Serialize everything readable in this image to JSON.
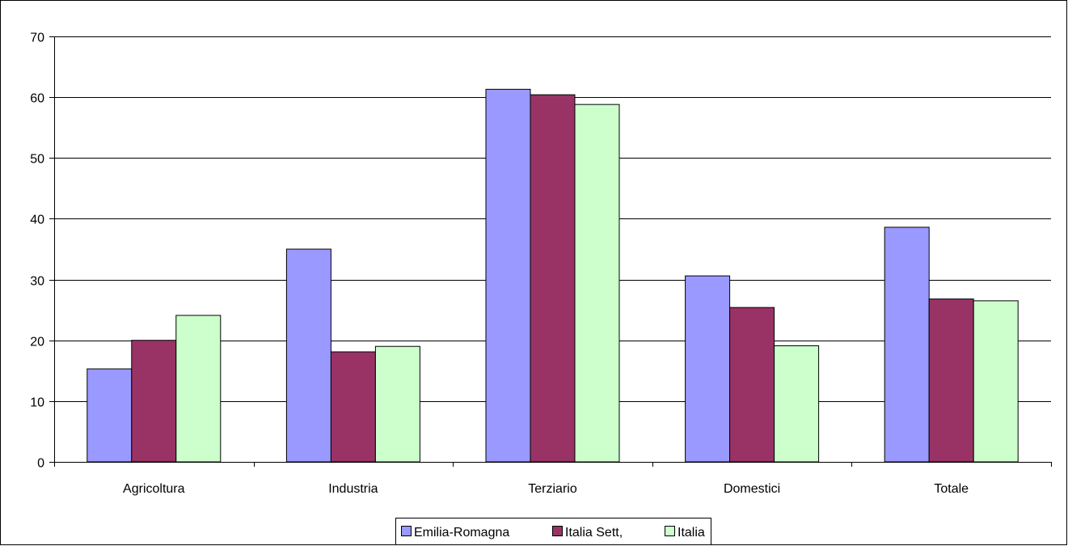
{
  "chart_data": {
    "type": "bar",
    "title": "",
    "xlabel": "",
    "ylabel": "",
    "categories": [
      "Agricoltura",
      "Industria",
      "Terziario",
      "Domestici",
      "Totale"
    ],
    "series": [
      {
        "name": "Emilia-Romagna",
        "color": "#9999ff",
        "values": [
          15.3,
          35.0,
          61.3,
          30.6,
          38.6
        ]
      },
      {
        "name": "Italia Sett,",
        "color": "#993366",
        "values": [
          20.0,
          18.1,
          60.4,
          25.4,
          26.8
        ]
      },
      {
        "name": "Italia",
        "color": "#ccffcc",
        "values": [
          24.1,
          19.0,
          58.8,
          19.1,
          26.5
        ]
      }
    ],
    "ylim": [
      0,
      70
    ],
    "yticks": [
      0,
      10,
      20,
      30,
      40,
      50,
      60,
      70
    ],
    "grid": true,
    "legend_position": "bottom"
  }
}
